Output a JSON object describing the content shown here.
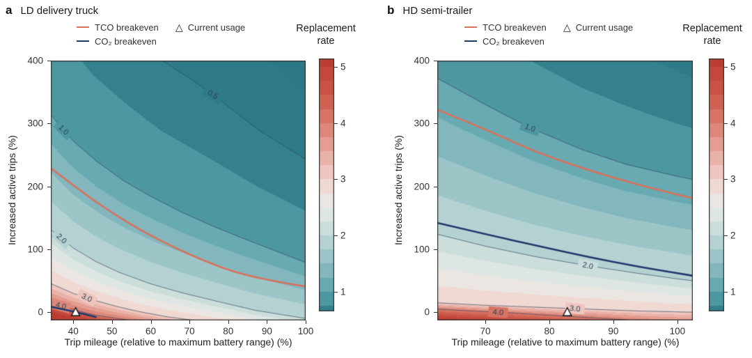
{
  "figure": {
    "background": "#ffffff"
  },
  "colors": {
    "tco": "#d9715c",
    "co2": "#21386b",
    "contour_line": "#31465a",
    "contour_label": "#2d4255",
    "axis": "#333333",
    "marker_fill": "#ffffff",
    "marker_edge": "#111111"
  },
  "colormap": {
    "band_step": 0.25,
    "clamp": [
      0.2,
      5.05
    ],
    "anchors": [
      [
        0.3,
        "#2d7886"
      ],
      [
        0.65,
        "#35828e"
      ],
      [
        1.0,
        "#5aa3ac"
      ],
      [
        1.5,
        "#8fbec3"
      ],
      [
        2.0,
        "#c2d9d8"
      ],
      [
        2.5,
        "#e7ebe7"
      ],
      [
        2.75,
        "#f0e2dd"
      ],
      [
        3.0,
        "#f1d0c9"
      ],
      [
        3.5,
        "#e7a89d"
      ],
      [
        4.0,
        "#da7c6e"
      ],
      [
        4.5,
        "#cc594a"
      ],
      [
        5.2,
        "#b93a2d"
      ]
    ]
  },
  "chart_data": [
    {
      "type": "contour",
      "panel_label": "a",
      "title": "LD delivery truck",
      "xlabel": "Trip mileage (relative to maximum battery range) (%)",
      "ylabel": "Increased active trips (%)",
      "xlim": [
        34.2,
        100
      ],
      "ylim": [
        -13,
        400
      ],
      "x_ticks": [
        40,
        50,
        60,
        70,
        80,
        90,
        100
      ],
      "y_ticks": [
        0,
        100,
        200,
        300,
        400
      ],
      "legend": [
        {
          "kind": "line",
          "color_key": "tco",
          "label": "TCO breakeven"
        },
        {
          "kind": "line",
          "color_key": "co2",
          "label": "CO₂ breakeven"
        },
        {
          "kind": "marker",
          "glyph": "△",
          "label": "Current usage"
        }
      ],
      "colorbar": {
        "title": [
          "Replacement",
          "rate"
        ],
        "ticks": [
          1,
          2,
          3,
          4,
          5
        ],
        "vmin": 0.65,
        "vmax": 5.15
      },
      "levels": [
        {
          "value": 0.25,
          "line": false,
          "points": [
            [
              70,
              560
            ],
            [
              85,
              430
            ],
            [
              100,
              347
            ]
          ]
        },
        {
          "value": 0.5,
          "line": true,
          "points": [
            [
              34,
              620
            ],
            [
              45,
              510
            ],
            [
              55,
              448
            ],
            [
              63,
              400
            ],
            [
              70,
              372
            ],
            [
              76,
              346
            ],
            [
              88,
              289
            ],
            [
              100,
              243
            ]
          ]
        },
        {
          "value": 1.0,
          "line": true,
          "points": [
            [
              34,
              315
            ],
            [
              40,
              272
            ],
            [
              46,
              240
            ],
            [
              53,
              209
            ],
            [
              60,
              184
            ],
            [
              68,
              159
            ],
            [
              76,
              137
            ],
            [
              84,
              117
            ],
            [
              92,
              98
            ],
            [
              100,
              79
            ]
          ]
        },
        {
          "value": 2.0,
          "line": true,
          "points": [
            [
              34,
              132
            ],
            [
              40,
              102
            ],
            [
              46,
              80
            ],
            [
              52,
              63
            ],
            [
              60,
              45
            ],
            [
              68,
              31
            ],
            [
              76,
              19
            ],
            [
              87,
              3
            ],
            [
              100,
              -10
            ]
          ]
        },
        {
          "value": 3.0,
          "line": true,
          "points": [
            [
              34,
              46
            ],
            [
              40,
              30
            ],
            [
              46,
              18
            ],
            [
              52,
              8
            ],
            [
              57,
              1
            ],
            [
              64,
              -7
            ],
            [
              75,
              -16
            ]
          ]
        },
        {
          "value": 4.0,
          "line": true,
          "points": [
            [
              34,
              16
            ],
            [
              38,
              8
            ],
            [
              42,
              1
            ],
            [
              46,
              -5
            ],
            [
              55,
              -13
            ]
          ]
        },
        {
          "value": 5.0,
          "line": false,
          "points": [
            [
              34,
              1
            ],
            [
              37,
              -4
            ],
            [
              42,
              -10
            ],
            [
              50,
              -17
            ]
          ]
        }
      ],
      "contour_labels": [
        {
          "text": "0.5",
          "level": 0.5,
          "x": 76,
          "rot": 32
        },
        {
          "text": "1.0",
          "level": 1.0,
          "x": 37.5,
          "rot": 45
        },
        {
          "text": "2.0",
          "level": 2.0,
          "x": 37,
          "rot": 42
        },
        {
          "text": "3.0",
          "level": 3.0,
          "x": 43.5,
          "rot": 27
        },
        {
          "text": "4.0",
          "level": 4.0,
          "x": 36.8,
          "rot": 15
        }
      ],
      "tco_breakeven": [
        [
          34,
          230
        ],
        [
          42,
          192
        ],
        [
          50,
          158
        ],
        [
          58,
          128
        ],
        [
          66,
          103
        ],
        [
          74,
          81
        ],
        [
          82,
          63
        ],
        [
          91,
          50
        ],
        [
          100,
          41
        ]
      ],
      "co2_breakeven": [
        [
          34,
          9
        ],
        [
          37,
          5
        ],
        [
          40,
          1
        ],
        [
          43,
          -3
        ],
        [
          46,
          -8
        ]
      ],
      "current_usage": {
        "x": 40.6,
        "y": 0
      }
    },
    {
      "type": "contour",
      "panel_label": "b",
      "title": "HD semi-trailer",
      "xlabel": "Trip mileage (relative to maximum battery range) (%)",
      "ylabel": "Increased active trips (%)",
      "xlim": [
        62.5,
        102.4
      ],
      "ylim": [
        -13,
        400
      ],
      "x_ticks": [
        70,
        80,
        90,
        100
      ],
      "y_ticks": [
        0,
        100,
        200,
        300,
        400
      ],
      "legend": [
        {
          "kind": "line",
          "color_key": "tco",
          "label": "TCO breakeven"
        },
        {
          "kind": "line",
          "color_key": "co2",
          "label": "CO₂ breakeven"
        },
        {
          "kind": "marker",
          "glyph": "△",
          "label": "Current usage"
        }
      ],
      "colorbar": {
        "title": [
          "Replacement",
          "rate"
        ],
        "ticks": [
          1,
          2,
          3,
          4,
          5
        ],
        "vmin": 0.65,
        "vmax": 5.15
      },
      "levels": [
        {
          "value": 0.5,
          "line": false,
          "points": [
            [
              62.5,
              620
            ],
            [
              75,
              520
            ],
            [
              85,
              455
            ],
            [
              95,
              406
            ],
            [
              102.4,
              373
            ]
          ]
        },
        {
          "value": 1.0,
          "line": true,
          "points": [
            [
              62.5,
              372
            ],
            [
              70,
              330
            ],
            [
              77,
              293
            ],
            [
              85,
              259
            ],
            [
              92,
              235
            ],
            [
              100,
              216
            ],
            [
              102.4,
              211
            ]
          ]
        },
        {
          "value": 2.0,
          "line": true,
          "points": [
            [
              62.5,
              124
            ],
            [
              70,
              105
            ],
            [
              78,
              88
            ],
            [
              86,
              74
            ],
            [
              93,
              63
            ],
            [
              100,
              53
            ],
            [
              102.4,
              50
            ]
          ]
        },
        {
          "value": 3.0,
          "line": true,
          "points": [
            [
              62.5,
              15
            ],
            [
              70,
              11
            ],
            [
              78,
              8
            ],
            [
              86,
              5
            ],
            [
              94,
              2
            ],
            [
              102.4,
              0
            ]
          ]
        },
        {
          "value": 4.0,
          "line": true,
          "points": [
            [
              62.5,
              5
            ],
            [
              68,
              2
            ],
            [
              74,
              -1
            ],
            [
              82,
              -6
            ],
            [
              92,
              -12
            ]
          ]
        },
        {
          "value": 5.0,
          "line": false,
          "points": [
            [
              62.5,
              -9
            ],
            [
              75,
              -15
            ],
            [
              90,
              -21
            ]
          ]
        }
      ],
      "contour_labels": [
        {
          "text": "1.0",
          "level": 1.0,
          "x": 77,
          "rot": 20
        },
        {
          "text": "2.0",
          "level": 2.0,
          "x": 86,
          "rot": 12
        },
        {
          "text": "3.0",
          "level": 3.0,
          "x": 84,
          "rot": 6
        },
        {
          "text": "4.0",
          "level": 4.0,
          "x": 72,
          "rot": 4
        }
      ],
      "tco_breakeven": [
        [
          62.5,
          322
        ],
        [
          70,
          291
        ],
        [
          78,
          254
        ],
        [
          86,
          226
        ],
        [
          94,
          202
        ],
        [
          102.4,
          181
        ]
      ],
      "co2_breakeven": [
        [
          62.5,
          142
        ],
        [
          70,
          124
        ],
        [
          78,
          106
        ],
        [
          86,
          88
        ],
        [
          94,
          72
        ],
        [
          102.4,
          58
        ]
      ],
      "current_usage": {
        "x": 82.8,
        "y": 0
      }
    }
  ]
}
